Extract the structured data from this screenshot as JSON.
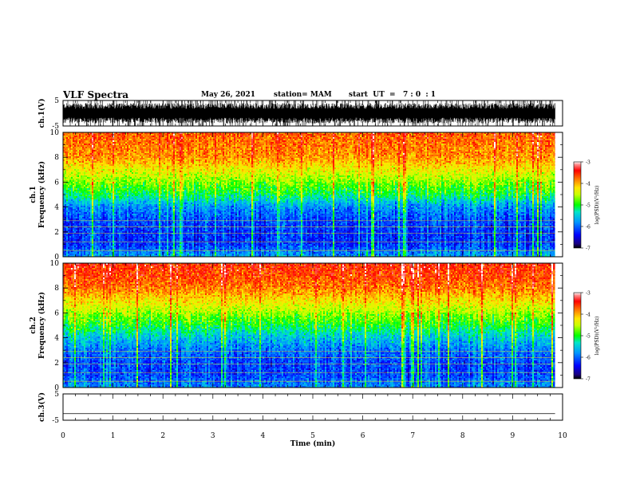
{
  "header": {
    "title": "VLF Spectra",
    "date": "May 26, 2021",
    "station": "station= MAM",
    "start": "start  UT  =   7 : 0  : 1"
  },
  "chart_data": [
    {
      "type": "line",
      "ylabel": "ch.1(V)",
      "ylim": [
        -5,
        5
      ],
      "yticks": [
        "5",
        "-5"
      ],
      "xlim": [
        0,
        10
      ],
      "description_values": {
        "signal_extent_min": -5,
        "signal_extent_max": 5,
        "end_time_min": 9.85
      }
    },
    {
      "type": "heatmap",
      "ylabel": "ch.1\nFrequency  (kHz)",
      "ylim": [
        0,
        10
      ],
      "yticks": [
        "0",
        "2",
        "4",
        "6",
        "8",
        "10"
      ],
      "xlim": [
        0,
        10
      ],
      "data_end_time": 9.85,
      "colorbar": {
        "label": "log(PSD)(V²/Hz)",
        "range": [
          -7,
          -3
        ],
        "ticks": [
          "-3",
          "-4",
          "-5",
          "-6",
          "-7"
        ]
      },
      "freq_profile_kHz": [
        0,
        1,
        2,
        3,
        4,
        5,
        6,
        7,
        8,
        9,
        10
      ],
      "log_psd_profile": [
        -5.7,
        -6.2,
        -6.2,
        -6.1,
        -5.8,
        -5.1,
        -4.7,
        -4.3,
        -3.9,
        -3.8,
        -3.7
      ]
    },
    {
      "type": "heatmap",
      "ylabel": "ch.2\nFrequency  (kHz)",
      "ylim": [
        0,
        10
      ],
      "yticks": [
        "0",
        "2",
        "4",
        "6",
        "8",
        "10"
      ],
      "xlim": [
        0,
        10
      ],
      "data_end_time": 9.85,
      "colorbar": {
        "label": "log(PSD)(V²/Hz)",
        "range": [
          -7,
          -3
        ],
        "ticks": [
          "-3",
          "-4",
          "-5",
          "-6",
          "-7"
        ]
      },
      "freq_profile_kHz": [
        0,
        1,
        2,
        3,
        4,
        5,
        6,
        7,
        8,
        9,
        10
      ],
      "log_psd_profile": [
        -5.8,
        -6.1,
        -6.1,
        -5.9,
        -5.5,
        -5.0,
        -4.6,
        -4.2,
        -3.8,
        -3.6,
        -3.5
      ]
    },
    {
      "type": "line",
      "ylabel": "ch.3(V)",
      "ylim": [
        -5,
        5
      ],
      "yticks": [
        "5",
        "-5"
      ],
      "xlim": [
        0,
        10
      ],
      "constant_value": -2.5,
      "end_time_min": 9.85
    }
  ],
  "xaxis": {
    "label": "Time  (min)",
    "ticks": [
      "0",
      "1",
      "2",
      "3",
      "4",
      "5",
      "6",
      "7",
      "8",
      "9",
      "10"
    ]
  },
  "colors": {
    "axis": "#000000",
    "background": "#ffffff"
  }
}
